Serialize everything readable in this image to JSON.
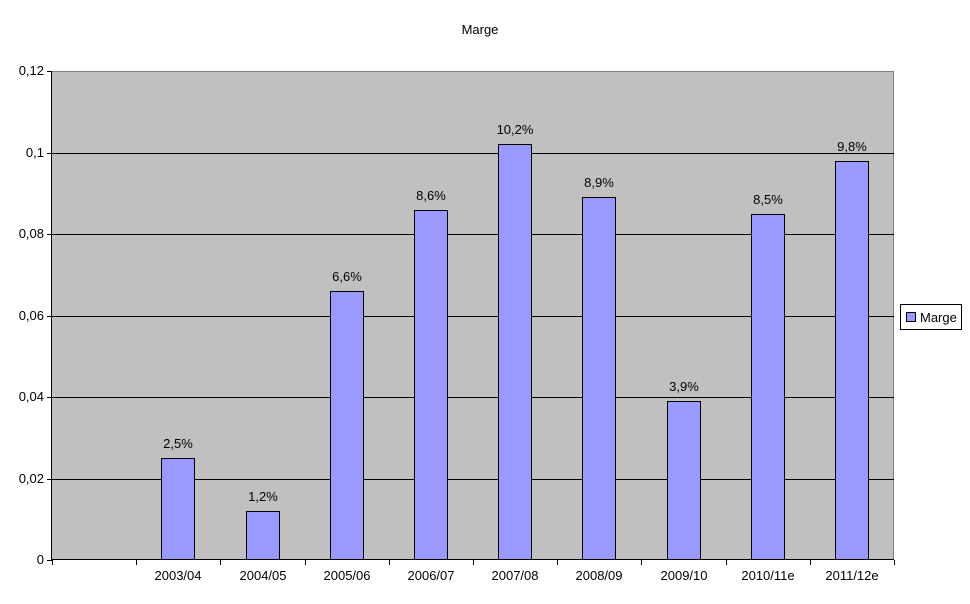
{
  "chart_data": {
    "type": "bar",
    "title": "Marge",
    "categories": [
      "2003/04",
      "2004/05",
      "2005/06",
      "2006/07",
      "2007/08",
      "2008/09",
      "2009/10",
      "2010/11e",
      "2011/12e"
    ],
    "series": [
      {
        "name": "Marge",
        "values": [
          0.025,
          0.012,
          0.066,
          0.086,
          0.102,
          0.089,
          0.039,
          0.085,
          0.098
        ],
        "data_labels": [
          "2,5%",
          "1,2%",
          "6,6%",
          "8,6%",
          "10,2%",
          "8,9%",
          "3,9%",
          "8,5%",
          "9,8%"
        ]
      }
    ],
    "xlabel": "",
    "ylabel": "",
    "ylim": [
      0,
      0.12
    ],
    "y_tick_values": [
      0,
      0.02,
      0.04,
      0.06,
      0.08,
      0.1,
      0.12
    ],
    "y_tick_labels": [
      "0",
      "0,02",
      "0,04",
      "0,06",
      "0,08",
      "0,1",
      "0,12"
    ],
    "grid": true,
    "legend": {
      "label": "Marge",
      "position": "right"
    },
    "layout_hints": {
      "x_slots": 10,
      "first_bar_slot": 1,
      "decimal_separator": ","
    },
    "colors": {
      "bar_fill": "#9999FF",
      "bar_border": "#000000",
      "plot_background": "#C0C0C0",
      "gridline": "#000000",
      "plot_border": "#808080",
      "background": "#FFFFFF"
    }
  }
}
